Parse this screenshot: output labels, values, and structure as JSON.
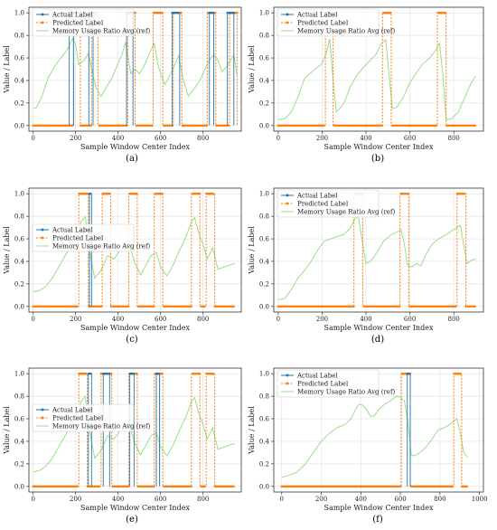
{
  "figure": {
    "captions": [
      "(a)",
      "(b)",
      "(c)",
      "(d)",
      "(e)",
      "(f)"
    ]
  },
  "colors": {
    "actual": "#1f77b4",
    "predicted": "#ff7f0e",
    "memory": "#98df8a",
    "grid": "#e3e3e3",
    "axis": "#333333"
  },
  "chart_data": [
    {
      "type": "line",
      "panel": "(a)",
      "xlabel": "Sample Window Center Index",
      "ylabel": "Value / Label",
      "xlim": [
        -20,
        980
      ],
      "ylim": [
        -0.05,
        1.05
      ],
      "xticks": [
        0,
        200,
        400,
        600,
        800
      ],
      "yticks": [
        0.0,
        0.2,
        0.4,
        0.6,
        0.8,
        1.0
      ],
      "grid": true,
      "legend_position": "upper-left",
      "series": [
        {
          "name": "Actual Label",
          "style": "solid-dot",
          "segments": [
            [
              170,
              190
            ],
            [
              262,
              282
            ],
            [
              440,
              470
            ],
            [
              655,
              690
            ],
            [
              830,
              850
            ],
            [
              915,
              945
            ]
          ]
        },
        {
          "name": "Predicted Label",
          "style": "dashed-dot",
          "segments": [
            [
              190,
              222
            ],
            [
              275,
              305
            ],
            [
              445,
              480
            ],
            [
              565,
              610
            ],
            [
              660,
              700
            ],
            [
              820,
              860
            ],
            [
              925,
              960
            ]
          ]
        },
        {
          "name": "Memory Usage Ratio Avg (ref)",
          "style": "solid",
          "x": [
            0,
            15,
            40,
            70,
            100,
            130,
            160,
            185,
            200,
            215,
            240,
            260,
            285,
            300,
            320,
            345,
            370,
            395,
            420,
            435,
            460,
            480,
            500,
            520,
            545,
            570,
            590,
            620,
            645,
            665,
            685,
            705,
            730,
            760,
            790,
            810,
            830,
            850,
            870,
            890,
            910,
            930,
            945,
            960
          ],
          "y": [
            0.15,
            0.16,
            0.25,
            0.42,
            0.52,
            0.6,
            0.67,
            0.77,
            0.72,
            0.54,
            0.58,
            0.64,
            0.42,
            0.32,
            0.26,
            0.34,
            0.42,
            0.53,
            0.64,
            0.74,
            0.46,
            0.5,
            0.46,
            0.52,
            0.63,
            0.73,
            0.52,
            0.36,
            0.45,
            0.53,
            0.62,
            0.42,
            0.26,
            0.33,
            0.42,
            0.5,
            0.58,
            0.63,
            0.58,
            0.48,
            0.52,
            0.58,
            0.63,
            0.45
          ]
        }
      ]
    },
    {
      "type": "line",
      "panel": "(b)",
      "xlabel": "Sample Window Center Index",
      "ylabel": "Value / Label",
      "xlim": [
        -20,
        935
      ],
      "ylim": [
        -0.05,
        1.05
      ],
      "xticks": [
        0,
        200,
        400,
        600,
        800
      ],
      "yticks": [
        0.0,
        0.2,
        0.4,
        0.6,
        0.8,
        1.0
      ],
      "grid": true,
      "legend_position": "upper-left",
      "series": [
        {
          "name": "Actual Label",
          "style": "solid-dot",
          "segments": []
        },
        {
          "name": "Predicted Label",
          "style": "dashed-dot",
          "segments": [
            [
              215,
              250
            ],
            [
              475,
              515
            ],
            [
              725,
              765
            ]
          ]
        },
        {
          "name": "Memory Usage Ratio Avg (ref)",
          "style": "solid",
          "x": [
            0,
            30,
            60,
            90,
            120,
            150,
            180,
            200,
            220,
            235,
            250,
            265,
            280,
            300,
            330,
            360,
            390,
            420,
            445,
            470,
            490,
            505,
            520,
            540,
            570,
            600,
            630,
            660,
            690,
            715,
            735,
            750,
            765,
            790,
            820,
            850,
            880,
            900
          ],
          "y": [
            0.05,
            0.06,
            0.12,
            0.25,
            0.42,
            0.47,
            0.52,
            0.55,
            0.65,
            0.77,
            0.4,
            0.12,
            0.15,
            0.2,
            0.35,
            0.45,
            0.52,
            0.58,
            0.63,
            0.73,
            0.76,
            0.45,
            0.15,
            0.16,
            0.25,
            0.38,
            0.47,
            0.55,
            0.6,
            0.66,
            0.73,
            0.45,
            0.05,
            0.06,
            0.12,
            0.25,
            0.38,
            0.44
          ]
        }
      ]
    },
    {
      "type": "line",
      "panel": "(c)",
      "xlabel": "Sample Window Center Index",
      "ylabel": "Value / Label",
      "xlim": [
        -20,
        980
      ],
      "ylim": [
        -0.05,
        1.05
      ],
      "xticks": [
        0,
        200,
        400,
        600,
        800
      ],
      "yticks": [
        0.0,
        0.2,
        0.4,
        0.6,
        0.8,
        1.0
      ],
      "grid": true,
      "legend_position": "center-left",
      "series": [
        {
          "name": "Actual Label",
          "style": "solid-dot",
          "segments": [
            [
              265,
              275
            ]
          ]
        },
        {
          "name": "Predicted Label",
          "style": "dashed-dot",
          "segments": [
            [
              215,
              260
            ],
            [
              325,
              365
            ],
            [
              450,
              490
            ],
            [
              570,
              610
            ],
            [
              745,
              785
            ],
            [
              815,
              855
            ]
          ]
        },
        {
          "name": "Memory Usage Ratio Avg (ref)",
          "style": "solid",
          "x": [
            0,
            30,
            60,
            90,
            120,
            150,
            180,
            205,
            225,
            245,
            270,
            290,
            320,
            350,
            380,
            410,
            440,
            460,
            480,
            505,
            530,
            555,
            580,
            600,
            630,
            660,
            690,
            720,
            745,
            760,
            780,
            800,
            820,
            845,
            870,
            900,
            930,
            950
          ],
          "y": [
            0.13,
            0.14,
            0.18,
            0.25,
            0.35,
            0.45,
            0.55,
            0.65,
            0.75,
            0.8,
            0.45,
            0.25,
            0.32,
            0.45,
            0.42,
            0.5,
            0.55,
            0.5,
            0.38,
            0.28,
            0.36,
            0.45,
            0.48,
            0.35,
            0.27,
            0.37,
            0.5,
            0.62,
            0.75,
            0.79,
            0.65,
            0.55,
            0.42,
            0.52,
            0.33,
            0.35,
            0.37,
            0.38
          ]
        }
      ]
    },
    {
      "type": "line",
      "panel": "(d)",
      "xlabel": "Sample Window Center Index",
      "ylabel": "Value / Label",
      "xlim": [
        -20,
        935
      ],
      "ylim": [
        -0.05,
        1.05
      ],
      "xticks": [
        0,
        200,
        400,
        600,
        800
      ],
      "yticks": [
        0.0,
        0.2,
        0.4,
        0.6,
        0.8,
        1.0
      ],
      "grid": true,
      "legend_position": "upper-left",
      "series": [
        {
          "name": "Actual Label",
          "style": "solid-dot",
          "segments": []
        },
        {
          "name": "Predicted Label",
          "style": "dashed-dot",
          "segments": [
            [
              345,
              385
            ],
            [
              555,
              595
            ],
            [
              815,
              855
            ]
          ]
        },
        {
          "name": "Memory Usage Ratio Avg (ref)",
          "style": "solid",
          "x": [
            0,
            30,
            60,
            90,
            120,
            150,
            180,
            210,
            240,
            270,
            300,
            330,
            350,
            365,
            385,
            400,
            420,
            450,
            480,
            510,
            540,
            560,
            575,
            590,
            610,
            630,
            650,
            670,
            700,
            730,
            760,
            790,
            815,
            830,
            845,
            860,
            880,
            900
          ],
          "y": [
            0.06,
            0.07,
            0.15,
            0.25,
            0.32,
            0.4,
            0.5,
            0.58,
            0.6,
            0.62,
            0.64,
            0.7,
            0.78,
            0.8,
            0.55,
            0.38,
            0.4,
            0.48,
            0.58,
            0.63,
            0.66,
            0.68,
            0.55,
            0.36,
            0.35,
            0.38,
            0.36,
            0.45,
            0.55,
            0.6,
            0.63,
            0.67,
            0.7,
            0.72,
            0.55,
            0.38,
            0.41,
            0.42
          ]
        }
      ]
    },
    {
      "type": "line",
      "panel": "(e)",
      "xlabel": "Sample Window Center Index",
      "ylabel": "Value / Label",
      "xlim": [
        -20,
        980
      ],
      "ylim": [
        -0.05,
        1.05
      ],
      "xticks": [
        0,
        200,
        400,
        600,
        800
      ],
      "yticks": [
        0.0,
        0.2,
        0.4,
        0.6,
        0.8,
        1.0
      ],
      "grid": true,
      "legend_position": "center-left",
      "series": [
        {
          "name": "Actual Label",
          "style": "solid-dot",
          "segments": [
            [
              260,
              275
            ],
            [
              330,
              360
            ],
            [
              455,
              475
            ],
            [
              580,
              595
            ]
          ]
        },
        {
          "name": "Predicted Label",
          "style": "dashed-dot",
          "segments": [
            [
              215,
              255
            ],
            [
              320,
              370
            ],
            [
              450,
              490
            ],
            [
              570,
              610
            ],
            [
              745,
              785
            ],
            [
              815,
              855
            ]
          ]
        },
        {
          "name": "Memory Usage Ratio Avg (ref)",
          "style": "solid",
          "x": [
            0,
            30,
            60,
            90,
            120,
            150,
            180,
            205,
            225,
            245,
            270,
            290,
            320,
            350,
            380,
            410,
            440,
            460,
            480,
            505,
            530,
            555,
            580,
            600,
            630,
            660,
            690,
            720,
            745,
            760,
            780,
            800,
            820,
            845,
            870,
            900,
            930,
            950
          ],
          "y": [
            0.13,
            0.14,
            0.18,
            0.25,
            0.35,
            0.45,
            0.55,
            0.65,
            0.75,
            0.8,
            0.45,
            0.25,
            0.32,
            0.45,
            0.42,
            0.5,
            0.55,
            0.5,
            0.38,
            0.28,
            0.36,
            0.45,
            0.48,
            0.35,
            0.27,
            0.37,
            0.5,
            0.62,
            0.75,
            0.79,
            0.65,
            0.55,
            0.42,
            0.52,
            0.33,
            0.35,
            0.37,
            0.38
          ]
        }
      ]
    },
    {
      "type": "line",
      "panel": "(f)",
      "xlabel": "Sample Window Center Index",
      "ylabel": "Value / Label",
      "xlim": [
        -40,
        1020
      ],
      "ylim": [
        -0.05,
        1.05
      ],
      "xticks": [
        0,
        200,
        400,
        600,
        800,
        1000
      ],
      "yticks": [
        0.0,
        0.2,
        0.4,
        0.6,
        0.8,
        1.0
      ],
      "grid": true,
      "legend_position": "upper-left",
      "series": [
        {
          "name": "Actual Label",
          "style": "solid-dot",
          "segments": [
            [
              635,
              650
            ]
          ]
        },
        {
          "name": "Predicted Label",
          "style": "dashed-dot",
          "segments": [
            [
              605,
              650
            ],
            [
              870,
              910
            ]
          ]
        },
        {
          "name": "Memory Usage Ratio Avg (ref)",
          "style": "solid",
          "x": [
            0,
            40,
            80,
            120,
            160,
            200,
            240,
            280,
            320,
            350,
            370,
            390,
            410,
            430,
            450,
            470,
            490,
            520,
            550,
            580,
            600,
            620,
            640,
            655,
            670,
            700,
            730,
            760,
            790,
            820,
            850,
            870,
            885,
            900,
            920,
            940
          ],
          "y": [
            0.08,
            0.1,
            0.13,
            0.2,
            0.3,
            0.4,
            0.47,
            0.52,
            0.55,
            0.6,
            0.67,
            0.73,
            0.72,
            0.68,
            0.62,
            0.63,
            0.68,
            0.73,
            0.76,
            0.8,
            0.79,
            0.76,
            0.55,
            0.28,
            0.27,
            0.3,
            0.35,
            0.42,
            0.5,
            0.52,
            0.55,
            0.58,
            0.6,
            0.5,
            0.3,
            0.26
          ]
        }
      ]
    }
  ]
}
